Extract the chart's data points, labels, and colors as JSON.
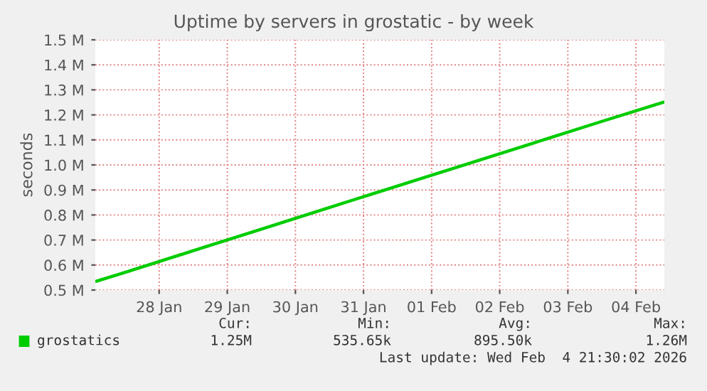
{
  "chart_data": {
    "type": "line",
    "title": "Uptime by servers in grostatic - by week",
    "ylabel": "seconds",
    "x": [
      "2026-01-27T14:00",
      "2026-01-28T00:00",
      "2026-01-29T00:00",
      "2026-01-30T00:00",
      "2026-01-31T00:00",
      "2026-02-01T00:00",
      "2026-02-02T00:00",
      "2026-02-03T00:00",
      "2026-02-04T00:00",
      "2026-02-04T21:30"
    ],
    "series": [
      {
        "name": "grostatics",
        "color": "#00cc00",
        "values": [
          535650,
          571000,
          657000,
          743000,
          830000,
          916000,
          1002000,
          1088000,
          1174000,
          1250000
        ]
      }
    ],
    "xlim": [
      "2026-01-27T13:30",
      "2026-02-04T22:00"
    ],
    "xticks": [
      {
        "value": "2026-01-28T12:00",
        "label": "28 Jan"
      },
      {
        "value": "2026-01-29T12:00",
        "label": "29 Jan"
      },
      {
        "value": "2026-01-30T12:00",
        "label": "30 Jan"
      },
      {
        "value": "2026-01-31T12:00",
        "label": "31 Jan"
      },
      {
        "value": "2026-02-01T12:00",
        "label": "01 Feb"
      },
      {
        "value": "2026-02-02T12:00",
        "label": "02 Feb"
      },
      {
        "value": "2026-02-03T12:00",
        "label": "03 Feb"
      },
      {
        "value": "2026-02-04T12:00",
        "label": "04 Feb"
      }
    ],
    "ylim": [
      500000,
      1500000
    ],
    "yticks": [
      {
        "value": 500000,
        "label": "0.5 M"
      },
      {
        "value": 600000,
        "label": "0.6 M"
      },
      {
        "value": 700000,
        "label": "0.7 M"
      },
      {
        "value": 800000,
        "label": "0.8 M"
      },
      {
        "value": 900000,
        "label": "0.9 M"
      },
      {
        "value": 1000000,
        "label": "1.0 M"
      },
      {
        "value": 1100000,
        "label": "1.1 M"
      },
      {
        "value": 1200000,
        "label": "1.2 M"
      },
      {
        "value": 1300000,
        "label": "1.3 M"
      },
      {
        "value": 1400000,
        "label": "1.4 M"
      },
      {
        "value": 1500000,
        "label": "1.5 M"
      }
    ],
    "grid": true,
    "legend": "bottom",
    "marker": "none",
    "line_style": "solid",
    "annotations": [
      "Cur:",
      "Min:",
      "Avg:",
      "Max:",
      "1.25M",
      "535.65k",
      "895.50k",
      "1.26M",
      "Last update: Wed Feb  4 21:30:02 2026"
    ]
  }
}
